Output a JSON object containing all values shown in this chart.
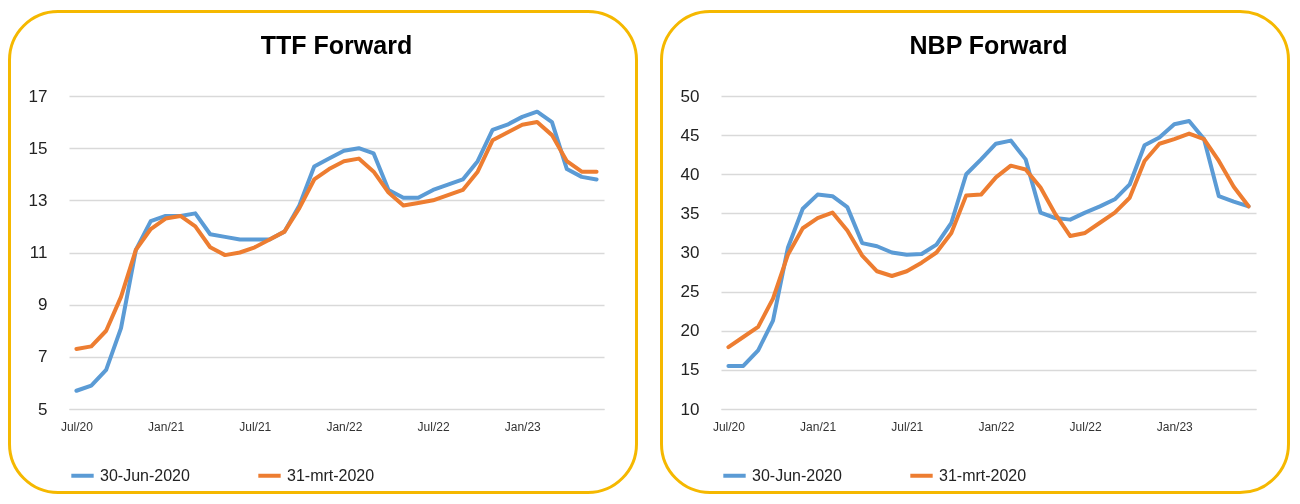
{
  "chart_data": [
    {
      "type": "line",
      "title": "TTF Forward",
      "categories": [
        "Jul/20",
        null,
        null,
        null,
        null,
        null,
        "Jan/21",
        null,
        null,
        null,
        null,
        null,
        "Jul/21",
        null,
        null,
        null,
        null,
        null,
        "Jan/22",
        null,
        null,
        null,
        null,
        null,
        "Jul/22",
        null,
        null,
        null,
        null,
        null,
        "Jan/23",
        null,
        null,
        null,
        null,
        null
      ],
      "series": [
        {
          "name": "30-Jun-2020",
          "color": "#5b9bd5",
          "values": [
            5.7,
            5.9,
            6.5,
            8.1,
            11.1,
            12.2,
            12.4,
            12.4,
            12.5,
            11.7,
            11.6,
            11.5,
            11.5,
            11.5,
            11.8,
            12.8,
            14.3,
            14.6,
            14.9,
            15.0,
            14.8,
            13.4,
            13.1,
            13.1,
            13.4,
            13.6,
            13.8,
            14.5,
            15.7,
            15.9,
            16.2,
            16.4,
            16.0,
            14.2,
            13.9,
            13.8
          ]
        },
        {
          "name": "31-mrt-2020",
          "color": "#ed7d31",
          "values": [
            7.3,
            7.4,
            8.0,
            9.3,
            11.1,
            11.9,
            12.3,
            12.4,
            12.0,
            11.2,
            10.9,
            11.0,
            11.2,
            11.5,
            11.8,
            12.7,
            13.8,
            14.2,
            14.5,
            14.6,
            14.1,
            13.3,
            12.8,
            12.9,
            13.0,
            13.2,
            13.4,
            14.1,
            15.3,
            15.6,
            15.9,
            16.0,
            15.5,
            14.5,
            14.1,
            14.1
          ]
        }
      ],
      "ylim": [
        5,
        17
      ],
      "yticks": [
        5,
        7,
        9,
        11,
        13,
        15,
        17
      ],
      "grid": "y",
      "legend": "bottom"
    },
    {
      "type": "line",
      "title": "NBP Forward",
      "categories": [
        "Jul/20",
        null,
        null,
        null,
        null,
        null,
        "Jan/21",
        null,
        null,
        null,
        null,
        null,
        "Jul/21",
        null,
        null,
        null,
        null,
        null,
        "Jan/22",
        null,
        null,
        null,
        null,
        null,
        "Jul/22",
        null,
        null,
        null,
        null,
        null,
        "Jan/23",
        null,
        null,
        null,
        null,
        null
      ],
      "series": [
        {
          "name": "30-Jun-2020",
          "color": "#5b9bd5",
          "values": [
            15.5,
            15.5,
            17.5,
            21.3,
            30.6,
            35.6,
            37.4,
            37.2,
            35.8,
            31.2,
            30.8,
            30.0,
            29.7,
            29.8,
            31.0,
            33.8,
            40.0,
            41.9,
            43.9,
            44.3,
            41.9,
            35.1,
            34.4,
            34.2,
            35.1,
            35.9,
            36.8,
            38.7,
            43.7,
            44.7,
            46.4,
            46.8,
            44.5,
            37.2,
            36.5,
            35.9
          ]
        },
        {
          "name": "31-mrt-2020",
          "color": "#ed7d31",
          "values": [
            17.9,
            19.2,
            20.5,
            24.1,
            29.7,
            33.1,
            34.4,
            35.1,
            32.8,
            29.6,
            27.6,
            27.0,
            27.6,
            28.7,
            30.0,
            32.5,
            37.3,
            37.4,
            39.6,
            41.1,
            40.6,
            38.3,
            34.9,
            32.1,
            32.5,
            33.8,
            35.1,
            37.0,
            41.7,
            43.9,
            44.5,
            45.2,
            44.5,
            41.7,
            38.4,
            35.9
          ]
        }
      ],
      "ylim": [
        10,
        50
      ],
      "yticks": [
        10,
        15,
        20,
        25,
        30,
        35,
        40,
        45,
        50
      ],
      "grid": "y",
      "legend": "bottom"
    }
  ]
}
